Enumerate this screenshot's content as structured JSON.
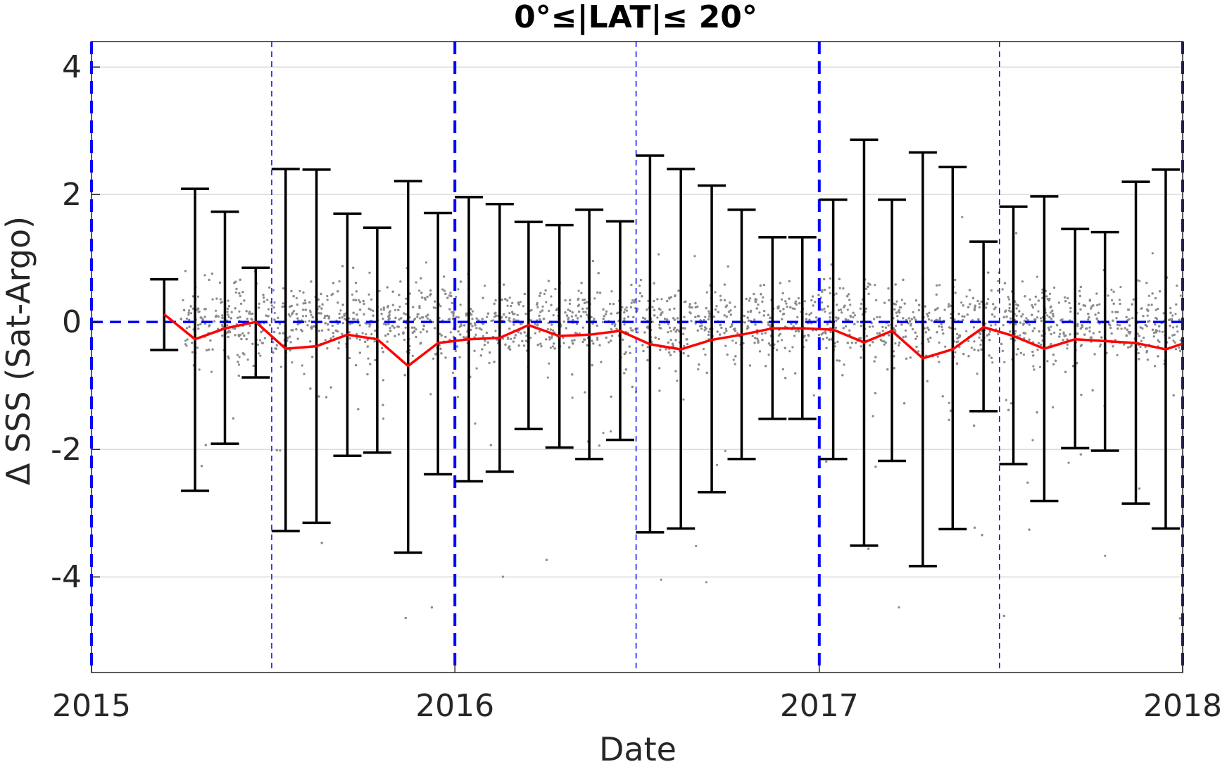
{
  "chart_data": {
    "type": "scatter",
    "title": "0°≤|LAT|≤ 20°",
    "xlabel": "Date",
    "ylabel": "Δ SSS (Sat-Argo)",
    "xlim": [
      "2015-01-01",
      "2018-01-01"
    ],
    "ylim": [
      -5.5,
      4.4
    ],
    "x_ticks": [
      "2015",
      "2016",
      "2017",
      "2018"
    ],
    "y_ticks": [
      -4,
      -2,
      0,
      2,
      4
    ],
    "grid": "horizontal",
    "colors": {
      "scatter": "#8c8c8c",
      "mean_line": "#ff0000",
      "error_bars": "#000000",
      "reference_lines": "#0000ff",
      "grid": "#dcdcdc"
    },
    "reference_lines": {
      "zero_line_y": 0,
      "year_boundaries": [
        "2015-01-01",
        "2016-01-01",
        "2017-01-01",
        "2018-01-01"
      ],
      "mid_year": [
        "2015-07-01",
        "2016-07-01",
        "2017-07-01"
      ]
    },
    "scatter_cloud": {
      "date_range": [
        "2015-04-01",
        "2018-01-01"
      ],
      "center": 0,
      "core_spread": 0.55
    },
    "series": [
      {
        "type": "errorbar",
        "x": [
          "2015-03-15",
          "2015-04-15",
          "2015-05-15",
          "2015-06-15",
          "2015-07-15",
          "2015-08-15",
          "2015-09-15",
          "2015-10-15",
          "2015-11-15",
          "2015-12-15",
          "2016-01-15",
          "2016-02-15",
          "2016-03-15",
          "2016-04-15",
          "2016-05-15",
          "2016-06-15",
          "2016-07-15",
          "2016-08-15",
          "2016-09-15",
          "2016-10-15",
          "2016-11-15",
          "2016-12-15",
          "2017-01-15",
          "2017-02-15",
          "2017-03-15",
          "2017-04-15",
          "2017-05-15",
          "2017-06-15",
          "2017-07-15",
          "2017-08-15",
          "2017-09-15",
          "2017-10-15",
          "2017-11-15",
          "2017-12-15"
        ],
        "upper": [
          0.67,
          2.09,
          1.73,
          0.85,
          2.4,
          2.39,
          1.7,
          1.48,
          2.21,
          1.71,
          1.96,
          1.85,
          1.57,
          1.52,
          1.76,
          1.58,
          2.61,
          2.4,
          2.14,
          1.76,
          1.33,
          1.33,
          1.92,
          2.86,
          1.92,
          2.66,
          2.43,
          1.26,
          1.81,
          1.97,
          1.46,
          1.41,
          2.2,
          2.39
        ],
        "lower": [
          -0.44,
          -2.65,
          -1.91,
          -0.87,
          -3.28,
          -3.15,
          -2.1,
          -2.05,
          -3.62,
          -2.39,
          -2.5,
          -2.35,
          -1.68,
          -1.97,
          -2.15,
          -1.85,
          -3.3,
          -3.24,
          -2.67,
          -2.15,
          -1.52,
          -1.52,
          -2.15,
          -3.51,
          -2.18,
          -3.83,
          -3.25,
          -1.4,
          -2.23,
          -2.81,
          -1.98,
          -2.02,
          -2.85,
          -3.24
        ]
      },
      {
        "type": "line",
        "x": [
          "2015-03-15",
          "2015-04-15",
          "2015-05-15",
          "2015-06-15",
          "2015-07-15",
          "2015-08-15",
          "2015-09-15",
          "2015-10-15",
          "2015-11-15",
          "2015-12-15",
          "2016-01-15",
          "2016-02-15",
          "2016-03-15",
          "2016-04-15",
          "2016-05-15",
          "2016-06-15",
          "2016-07-15",
          "2016-08-15",
          "2016-09-15",
          "2016-10-15",
          "2016-11-15",
          "2016-12-15",
          "2017-01-15",
          "2017-02-15",
          "2017-03-15",
          "2017-04-15",
          "2017-05-15",
          "2017-06-15",
          "2017-07-15",
          "2017-08-15",
          "2017-09-15",
          "2017-10-15",
          "2017-11-15",
          "2017-12-15",
          "2018-01-01"
        ],
        "y": [
          0.12,
          -0.27,
          -0.1,
          0.0,
          -0.42,
          -0.38,
          -0.2,
          -0.27,
          -0.69,
          -0.33,
          -0.27,
          -0.25,
          -0.05,
          -0.22,
          -0.2,
          -0.14,
          -0.35,
          -0.43,
          -0.28,
          -0.2,
          -0.1,
          -0.1,
          -0.12,
          -0.32,
          -0.14,
          -0.57,
          -0.43,
          -0.08,
          -0.22,
          -0.42,
          -0.27,
          -0.3,
          -0.33,
          -0.43,
          -0.34
        ]
      }
    ]
  }
}
